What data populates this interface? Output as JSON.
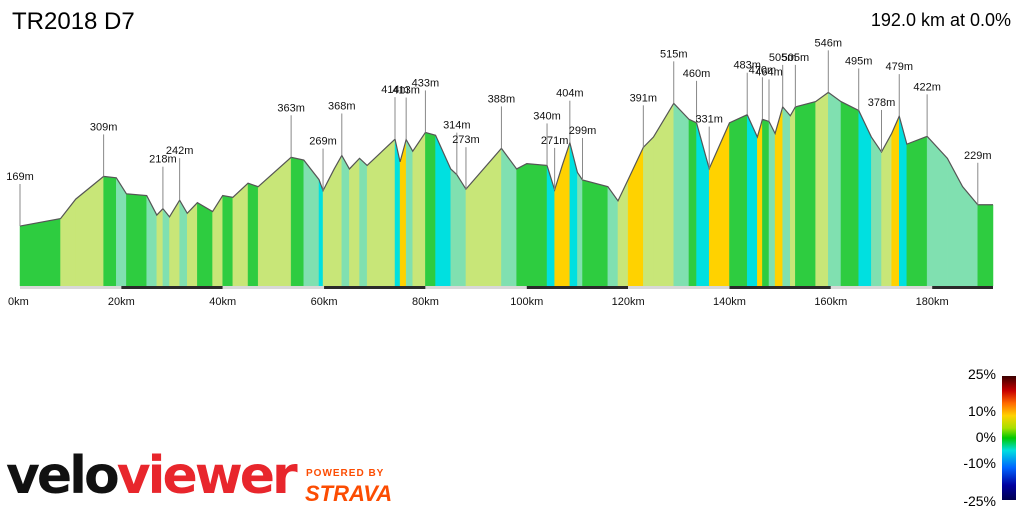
{
  "title": "TR2018 D7",
  "summary": "192.0 km at 0.0%",
  "logo": {
    "part1": "velo",
    "part2": "viewer",
    "powered_by": "POWERED BY",
    "brand": "STRAVA"
  },
  "legend": {
    "labels": [
      "25%",
      "10%",
      "0%",
      "-10%",
      "-25%"
    ]
  },
  "chart_data": {
    "type": "area",
    "title": "TR2018 D7",
    "xlabel": "",
    "ylabel": "",
    "x_unit": "km",
    "xlim": [
      0,
      192
    ],
    "x_ticks": [
      0,
      20,
      40,
      60,
      80,
      100,
      120,
      140,
      160,
      180
    ],
    "x_tick_labels": [
      "0km",
      "20km",
      "40km",
      "60km",
      "80km",
      "100km",
      "120km",
      "140km",
      "160km",
      "180km"
    ],
    "ylim": [
      0,
      750
    ],
    "profile": [
      {
        "x": 0,
        "y": 169
      },
      {
        "x": 8,
        "y": 190
      },
      {
        "x": 11,
        "y": 245
      },
      {
        "x": 16.5,
        "y": 309
      },
      {
        "x": 19,
        "y": 305
      },
      {
        "x": 21,
        "y": 260
      },
      {
        "x": 25,
        "y": 255
      },
      {
        "x": 27,
        "y": 200
      },
      {
        "x": 28.2,
        "y": 218
      },
      {
        "x": 29.5,
        "y": 195
      },
      {
        "x": 31.5,
        "y": 242
      },
      {
        "x": 33,
        "y": 205
      },
      {
        "x": 35,
        "y": 235
      },
      {
        "x": 38,
        "y": 210
      },
      {
        "x": 40,
        "y": 255
      },
      {
        "x": 42,
        "y": 250
      },
      {
        "x": 45,
        "y": 290
      },
      {
        "x": 47,
        "y": 280
      },
      {
        "x": 53.5,
        "y": 363
      },
      {
        "x": 56,
        "y": 355
      },
      {
        "x": 59,
        "y": 300
      },
      {
        "x": 59.8,
        "y": 269
      },
      {
        "x": 62,
        "y": 330
      },
      {
        "x": 63.5,
        "y": 368
      },
      {
        "x": 65,
        "y": 330
      },
      {
        "x": 67,
        "y": 360
      },
      {
        "x": 68.5,
        "y": 340
      },
      {
        "x": 74,
        "y": 414
      },
      {
        "x": 75,
        "y": 350
      },
      {
        "x": 76.2,
        "y": 413
      },
      {
        "x": 77.5,
        "y": 380
      },
      {
        "x": 80,
        "y": 433
      },
      {
        "x": 82,
        "y": 425
      },
      {
        "x": 85,
        "y": 330
      },
      {
        "x": 86.2,
        "y": 314
      },
      {
        "x": 88,
        "y": 273
      },
      {
        "x": 95,
        "y": 388
      },
      {
        "x": 98,
        "y": 330
      },
      {
        "x": 100,
        "y": 345
      },
      {
        "x": 104,
        "y": 340
      },
      {
        "x": 105.5,
        "y": 271
      },
      {
        "x": 107,
        "y": 340
      },
      {
        "x": 108.5,
        "y": 404
      },
      {
        "x": 110,
        "y": 320
      },
      {
        "x": 111,
        "y": 299
      },
      {
        "x": 116,
        "y": 280
      },
      {
        "x": 118,
        "y": 240
      },
      {
        "x": 120,
        "y": 300
      },
      {
        "x": 123,
        "y": 391
      },
      {
        "x": 125,
        "y": 420
      },
      {
        "x": 129,
        "y": 515
      },
      {
        "x": 132,
        "y": 470
      },
      {
        "x": 133.5,
        "y": 460
      },
      {
        "x": 136,
        "y": 331
      },
      {
        "x": 140,
        "y": 460
      },
      {
        "x": 143.5,
        "y": 483
      },
      {
        "x": 145.5,
        "y": 420
      },
      {
        "x": 146.5,
        "y": 470
      },
      {
        "x": 147.8,
        "y": 464
      },
      {
        "x": 149,
        "y": 430
      },
      {
        "x": 150.5,
        "y": 505
      },
      {
        "x": 152,
        "y": 480
      },
      {
        "x": 153,
        "y": 505
      },
      {
        "x": 157,
        "y": 520
      },
      {
        "x": 159.5,
        "y": 546
      },
      {
        "x": 162,
        "y": 520
      },
      {
        "x": 165.5,
        "y": 495
      },
      {
        "x": 168,
        "y": 420
      },
      {
        "x": 170,
        "y": 378
      },
      {
        "x": 172,
        "y": 430
      },
      {
        "x": 173.5,
        "y": 479
      },
      {
        "x": 175,
        "y": 400
      },
      {
        "x": 179,
        "y": 422
      },
      {
        "x": 183,
        "y": 360
      },
      {
        "x": 186,
        "y": 280
      },
      {
        "x": 189,
        "y": 229
      },
      {
        "x": 192,
        "y": 229
      }
    ],
    "elevation_labels": [
      {
        "x": 0,
        "y": 169,
        "label": "169m"
      },
      {
        "x": 16.5,
        "y": 309,
        "label": "309m"
      },
      {
        "x": 28.2,
        "y": 218,
        "label": "218m"
      },
      {
        "x": 31.5,
        "y": 242,
        "label": "242m"
      },
      {
        "x": 53.5,
        "y": 363,
        "label": "363m"
      },
      {
        "x": 59.8,
        "y": 269,
        "label": "269m"
      },
      {
        "x": 63.5,
        "y": 368,
        "label": "368m"
      },
      {
        "x": 74,
        "y": 414,
        "label": "414m"
      },
      {
        "x": 76.2,
        "y": 413,
        "label": "413m"
      },
      {
        "x": 80,
        "y": 433,
        "label": "433m"
      },
      {
        "x": 86.2,
        "y": 314,
        "label": "314m"
      },
      {
        "x": 88,
        "y": 273,
        "label": "273m"
      },
      {
        "x": 95,
        "y": 388,
        "label": "388m"
      },
      {
        "x": 104,
        "y": 340,
        "label": "340m"
      },
      {
        "x": 105.5,
        "y": 271,
        "label": "271m"
      },
      {
        "x": 108.5,
        "y": 404,
        "label": "404m"
      },
      {
        "x": 111,
        "y": 299,
        "label": "299m"
      },
      {
        "x": 123,
        "y": 391,
        "label": "391m"
      },
      {
        "x": 129,
        "y": 515,
        "label": "515m"
      },
      {
        "x": 133.5,
        "y": 460,
        "label": "460m"
      },
      {
        "x": 136,
        "y": 331,
        "label": "331m"
      },
      {
        "x": 143.5,
        "y": 483,
        "label": "483m"
      },
      {
        "x": 146.5,
        "y": 470,
        "label": "470m"
      },
      {
        "x": 147.8,
        "y": 464,
        "label": "464m"
      },
      {
        "x": 150.5,
        "y": 505,
        "label": "505m"
      },
      {
        "x": 153,
        "y": 505,
        "label": "505m"
      },
      {
        "x": 159.5,
        "y": 546,
        "label": "546m"
      },
      {
        "x": 165.5,
        "y": 495,
        "label": "495m"
      },
      {
        "x": 170,
        "y": 378,
        "label": "378m"
      },
      {
        "x": 173.5,
        "y": 479,
        "label": "479m"
      },
      {
        "x": 179,
        "y": 422,
        "label": "422m"
      },
      {
        "x": 189,
        "y": 229,
        "label": "229m"
      }
    ],
    "grid": false,
    "legend": "gradient color scale, bottom-right",
    "gradient_scale": {
      "min": -25,
      "max": 25,
      "unit": "%"
    },
    "colors": {
      "steep_up": "#c80000",
      "up": "#ffd200",
      "gentle_up": "#c8e678",
      "flat": "#2ecc40",
      "gentle_down": "#80e0b0",
      "down": "#00e0e0",
      "steep_down": "#0064ff",
      "outline": "#555555",
      "base_stripe": "#2a2a2a"
    }
  }
}
